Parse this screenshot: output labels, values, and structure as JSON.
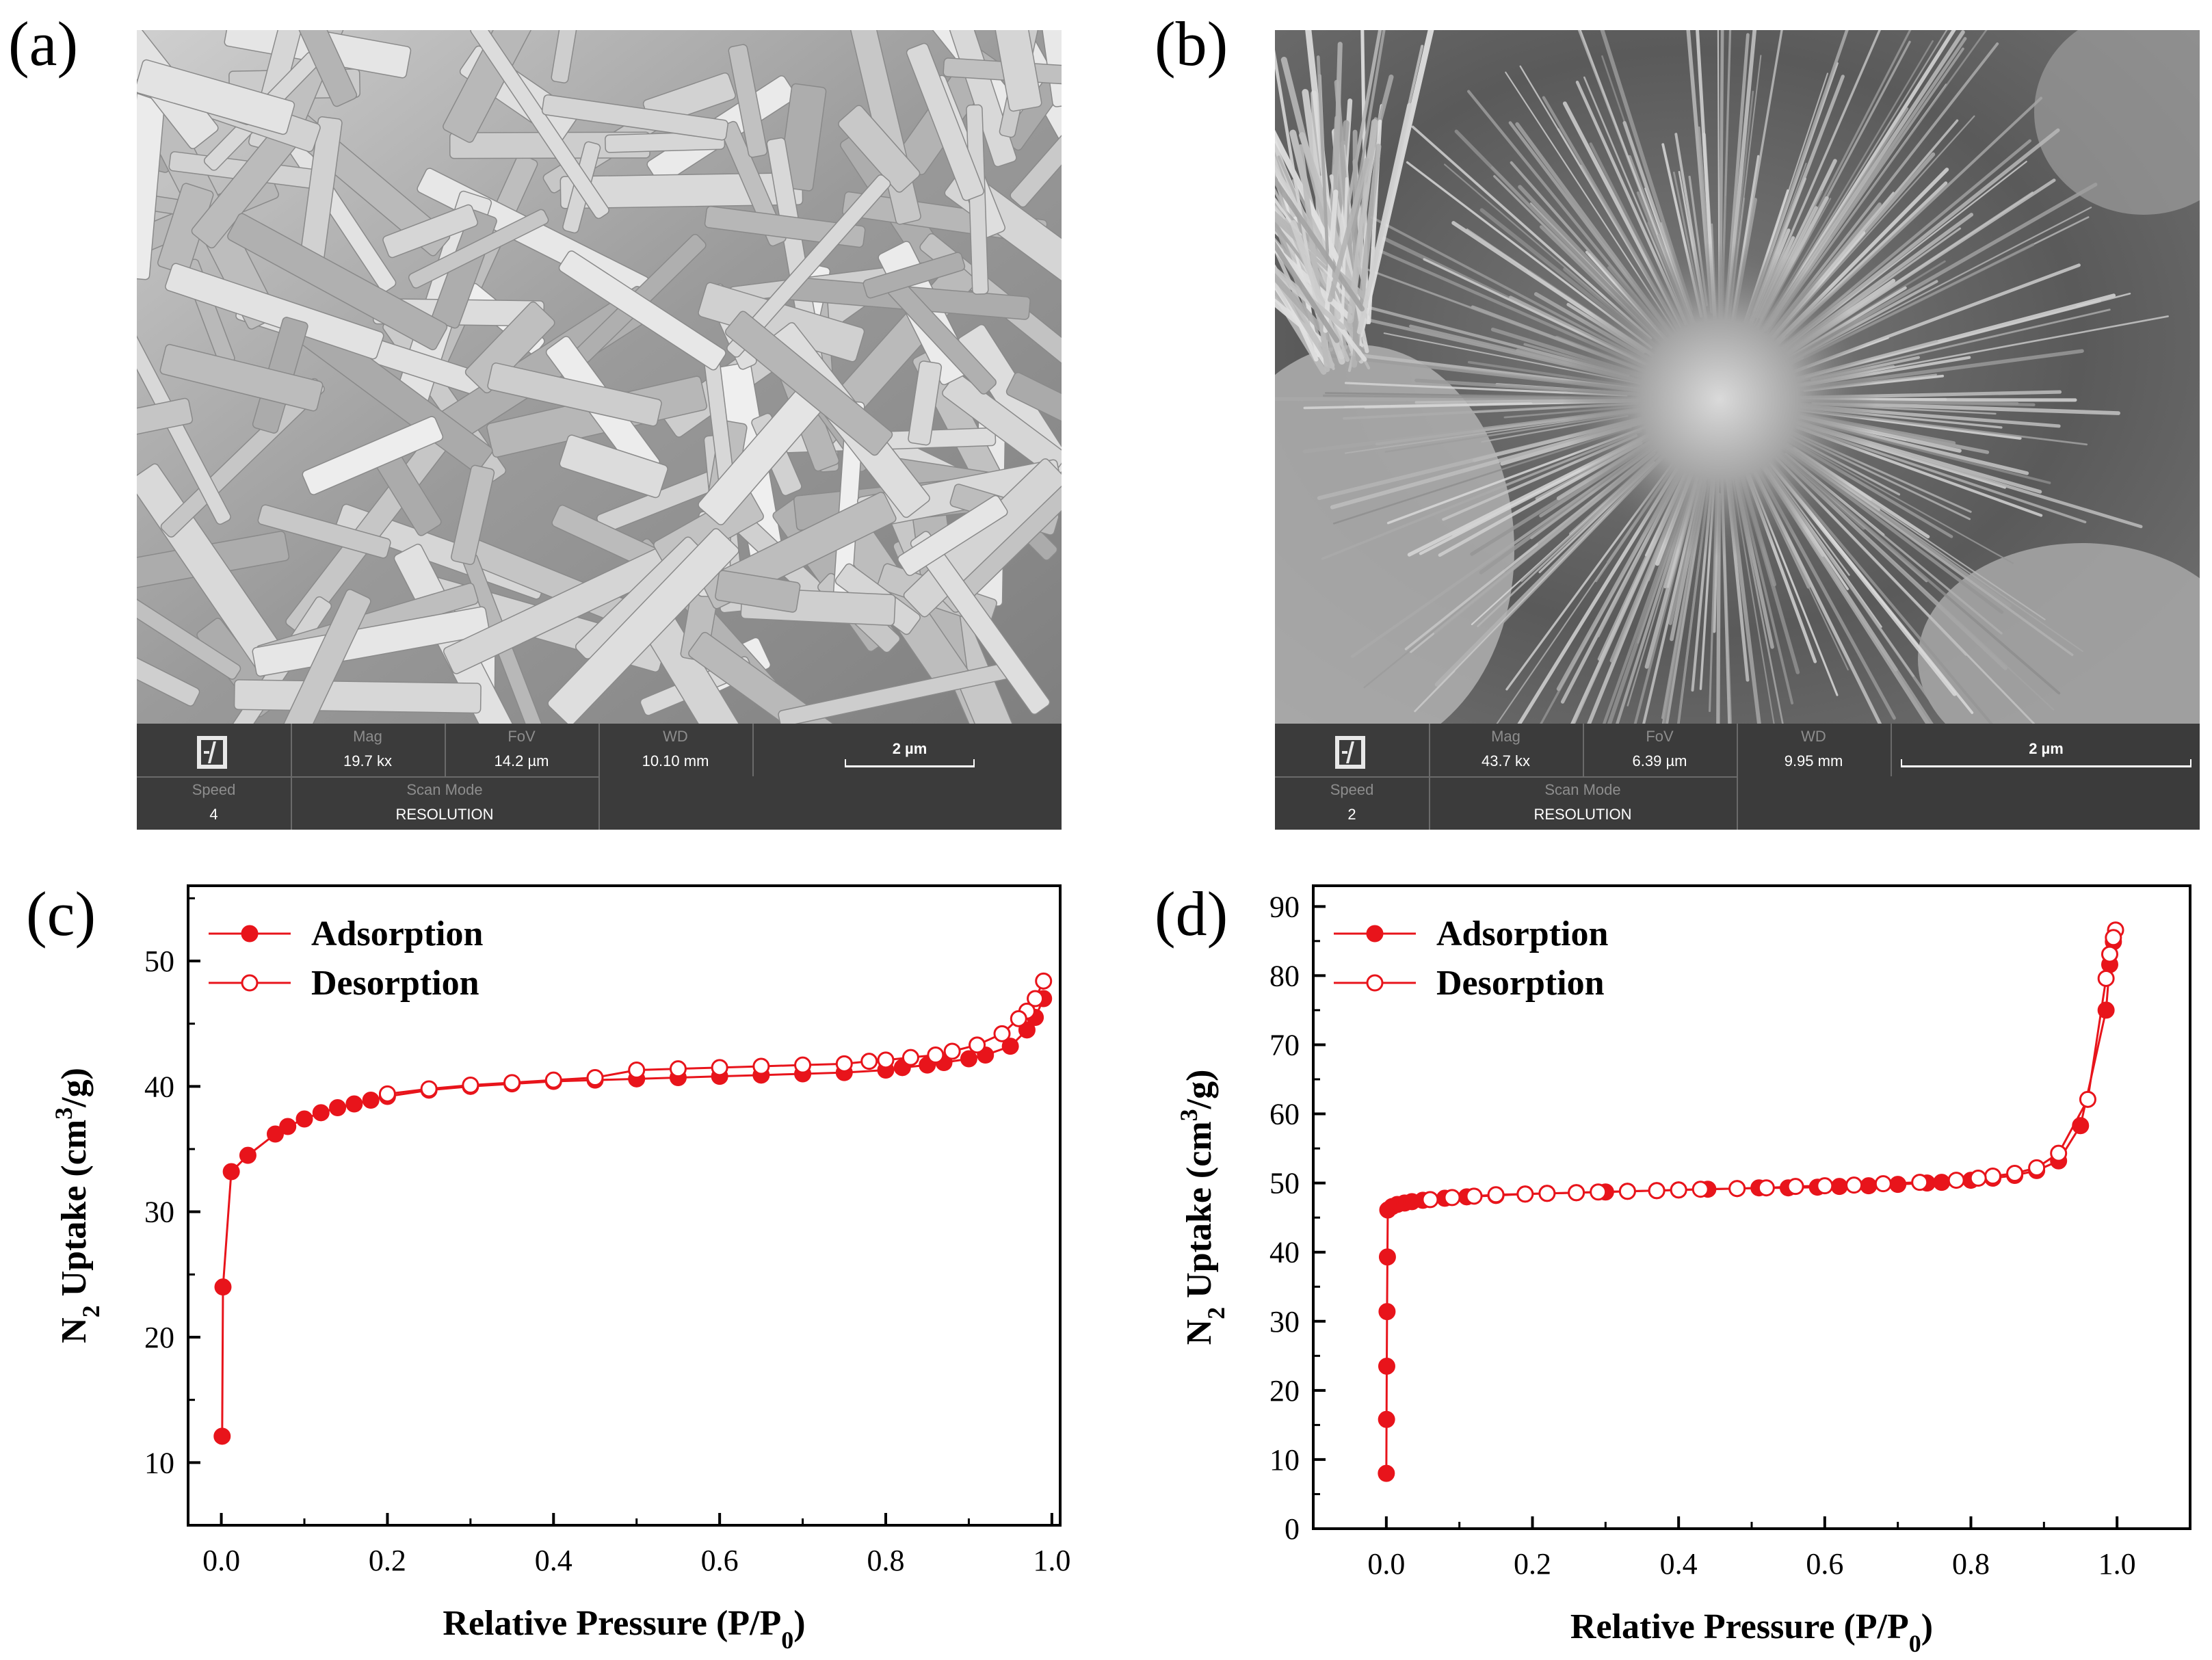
{
  "panels": {
    "a": {
      "label": "(a)"
    },
    "b": {
      "label": "(b)"
    },
    "c": {
      "label": "(c)"
    },
    "d": {
      "label": "(d)"
    }
  },
  "sem_a": {
    "headers": {
      "mag": "Mag",
      "fov": "FoV",
      "wd": "WD",
      "speed": "Speed",
      "scan_mode": "Scan Mode"
    },
    "mag": "19.7 kx",
    "fov": "14.2 µm",
    "wd": "10.10 mm",
    "speed": "4",
    "scan_mode": "RESOLUTION",
    "scale_bar": "2 µm",
    "icon": "microscope-logo-icon"
  },
  "sem_b": {
    "headers": {
      "mag": "Mag",
      "fov": "FoV",
      "wd": "WD",
      "speed": "Speed",
      "scan_mode": "Scan Mode"
    },
    "mag": "43.7 kx",
    "fov": "6.39 µm",
    "wd": "9.95 mm",
    "speed": "2",
    "scan_mode": "RESOLUTION",
    "scale_bar": "2 µm",
    "icon": "microscope-logo-icon"
  },
  "colors": {
    "series": "#e8141b",
    "axis": "#000000",
    "sem_bar": "#3b3b3b"
  },
  "chart_data": [
    {
      "id": "c",
      "type": "line",
      "xlabel_main": "Relative Pressure (P/P",
      "xlabel_sub": "0",
      "xlabel_end": ")",
      "ylabel_main": "N",
      "ylabel_sub": "2",
      "ylabel_mid": " Uptake (cm",
      "ylabel_sup": "3",
      "ylabel_end": "/g)",
      "xlim": [
        -0.04,
        1.01
      ],
      "ylim": [
        5,
        56
      ],
      "xticks": [
        "0.0",
        "0.2",
        "0.4",
        "0.6",
        "0.8",
        "1.0"
      ],
      "xtick_values": [
        0,
        0.2,
        0.4,
        0.6,
        0.8,
        1.0
      ],
      "yticks": [
        "10",
        "20",
        "30",
        "40",
        "50"
      ],
      "ytick_values": [
        10,
        20,
        30,
        40,
        50
      ],
      "legend": [
        "Adsorption",
        "Desorption"
      ],
      "legend_position": "top-left",
      "series": [
        {
          "name": "Adsorption",
          "marker": "filled",
          "x": [
            0.001,
            0.002,
            0.012,
            0.032,
            0.065,
            0.08,
            0.1,
            0.12,
            0.14,
            0.16,
            0.18,
            0.2,
            0.25,
            0.3,
            0.35,
            0.4,
            0.45,
            0.5,
            0.55,
            0.6,
            0.65,
            0.7,
            0.75,
            0.8,
            0.82,
            0.85,
            0.87,
            0.9,
            0.92,
            0.95,
            0.97,
            0.98,
            0.99
          ],
          "y": [
            12.1,
            24.0,
            33.2,
            34.5,
            36.2,
            36.8,
            37.4,
            37.9,
            38.3,
            38.6,
            38.9,
            39.2,
            39.7,
            40.0,
            40.2,
            40.4,
            40.5,
            40.6,
            40.7,
            40.8,
            40.9,
            41.0,
            41.1,
            41.3,
            41.5,
            41.7,
            41.9,
            42.2,
            42.5,
            43.2,
            44.5,
            45.5,
            47.0
          ]
        },
        {
          "name": "Desorption",
          "marker": "open",
          "x": [
            0.99,
            0.98,
            0.97,
            0.96,
            0.94,
            0.91,
            0.88,
            0.86,
            0.83,
            0.8,
            0.78,
            0.75,
            0.7,
            0.65,
            0.6,
            0.55,
            0.5,
            0.45,
            0.4,
            0.35,
            0.3,
            0.25,
            0.2
          ],
          "y": [
            48.4,
            47.0,
            46.0,
            45.4,
            44.2,
            43.3,
            42.8,
            42.5,
            42.3,
            42.1,
            42.0,
            41.8,
            41.7,
            41.6,
            41.5,
            41.4,
            41.3,
            40.7,
            40.5,
            40.3,
            40.1,
            39.8,
            39.4
          ]
        }
      ]
    },
    {
      "id": "d",
      "type": "line",
      "xlabel_main": "Relative Pressure (P/P",
      "xlabel_sub": "0",
      "xlabel_end": ")",
      "ylabel_main": "N",
      "ylabel_sub": "2",
      "ylabel_mid": " Uptake (cm",
      "ylabel_sup": "3",
      "ylabel_end": "/g)",
      "xlim": [
        -0.1,
        1.1
      ],
      "ylim": [
        0,
        93
      ],
      "xticks": [
        "0.0",
        "0.2",
        "0.4",
        "0.6",
        "0.8",
        "1.0"
      ],
      "xtick_values": [
        0,
        0.2,
        0.4,
        0.6,
        0.8,
        1.0
      ],
      "yticks": [
        "0",
        "10",
        "20",
        "30",
        "40",
        "50",
        "60",
        "70",
        "80",
        "90"
      ],
      "ytick_values": [
        0,
        10,
        20,
        30,
        40,
        50,
        60,
        70,
        80,
        90
      ],
      "legend": [
        "Adsorption",
        "Desorption"
      ],
      "legend_position": "top-left",
      "series": [
        {
          "name": "Adsorption",
          "marker": "filled",
          "x": [
            0.0,
            0.0003,
            0.0006,
            0.001,
            0.0015,
            0.002,
            0.008,
            0.015,
            0.025,
            0.035,
            0.05,
            0.08,
            0.11,
            0.15,
            0.19,
            0.22,
            0.26,
            0.3,
            0.33,
            0.37,
            0.4,
            0.44,
            0.48,
            0.51,
            0.55,
            0.59,
            0.62,
            0.66,
            0.7,
            0.74,
            0.76,
            0.8,
            0.83,
            0.86,
            0.89,
            0.92,
            0.95,
            0.985,
            0.99,
            0.995
          ],
          "y": [
            8.0,
            15.8,
            23.5,
            31.4,
            39.3,
            46.1,
            46.6,
            46.9,
            47.1,
            47.3,
            47.5,
            47.8,
            48.0,
            48.2,
            48.4,
            48.5,
            48.6,
            48.7,
            48.8,
            48.9,
            49.0,
            49.1,
            49.2,
            49.3,
            49.3,
            49.4,
            49.5,
            49.6,
            49.8,
            50.0,
            50.1,
            50.4,
            50.7,
            51.1,
            51.8,
            53.2,
            58.3,
            75.0,
            81.6,
            84.9
          ]
        },
        {
          "name": "Desorption",
          "marker": "open",
          "x": [
            0.998,
            0.995,
            0.99,
            0.985,
            0.96,
            0.92,
            0.89,
            0.86,
            0.83,
            0.81,
            0.78,
            0.73,
            0.68,
            0.64,
            0.6,
            0.56,
            0.52,
            0.48,
            0.43,
            0.4,
            0.37,
            0.33,
            0.29,
            0.26,
            0.22,
            0.19,
            0.15,
            0.12,
            0.09,
            0.06
          ],
          "y": [
            86.6,
            85.5,
            83.1,
            79.6,
            62.1,
            54.3,
            52.2,
            51.4,
            51.0,
            50.7,
            50.4,
            50.1,
            49.9,
            49.7,
            49.6,
            49.5,
            49.3,
            49.2,
            49.1,
            49.0,
            48.9,
            48.8,
            48.7,
            48.6,
            48.5,
            48.4,
            48.3,
            48.1,
            47.9,
            47.6
          ]
        }
      ]
    }
  ]
}
